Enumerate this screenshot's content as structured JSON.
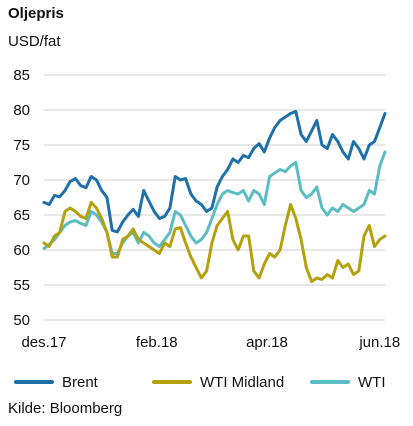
{
  "header": {
    "title": "Oljepris",
    "unit": "USD/fat"
  },
  "source": "Kilde: Bloomberg",
  "chart_data": {
    "type": "line",
    "yticks": [
      50,
      55,
      60,
      65,
      70,
      75,
      80,
      85
    ],
    "ylim": [
      50,
      85
    ],
    "xlim": [
      0,
      130
    ],
    "xticks": [
      {
        "label": "des.17",
        "x": 0
      },
      {
        "label": "feb.18",
        "x": 43
      },
      {
        "label": "apr.18",
        "x": 85
      },
      {
        "label": "jun.18",
        "x": 128
      }
    ],
    "grid": true,
    "legend": "bottom",
    "series": [
      {
        "name": "Brent",
        "color": "#1f6fa8",
        "x": [
          0,
          2,
          4,
          6,
          8,
          10,
          12,
          14,
          16,
          18,
          20,
          22,
          24,
          26,
          28,
          30,
          32,
          34,
          36,
          38,
          40,
          42,
          44,
          46,
          48,
          50,
          52,
          54,
          56,
          58,
          60,
          62,
          64,
          66,
          68,
          70,
          72,
          74,
          76,
          78,
          80,
          82,
          84,
          86,
          88,
          90,
          92,
          94,
          96,
          98,
          100,
          102,
          104,
          106,
          108,
          110,
          112,
          114,
          116,
          118,
          120,
          122,
          124,
          126,
          128,
          130
        ],
        "values": [
          66.8,
          66.5,
          67.8,
          67.6,
          68.5,
          69.8,
          70.2,
          69.2,
          68.9,
          70.5,
          70.0,
          68.5,
          67.5,
          62.8,
          62.6,
          64.0,
          65.0,
          65.8,
          64.8,
          68.5,
          67.0,
          65.5,
          64.5,
          64.8,
          66.0,
          70.5,
          70.0,
          70.2,
          68.0,
          67.0,
          66.5,
          65.5,
          66.0,
          69.0,
          70.5,
          71.5,
          73.0,
          72.5,
          73.5,
          73.2,
          74.5,
          75.2,
          74.0,
          76.0,
          77.5,
          78.5,
          79.0,
          79.5,
          79.8,
          76.5,
          75.5,
          77.0,
          78.5,
          75.0,
          74.5,
          76.5,
          75.5,
          74.0,
          73.0,
          75.5,
          74.5,
          73.0,
          75.0,
          75.5,
          77.5,
          79.5
        ]
      },
      {
        "name": "WTI Midland",
        "color": "#b5a00e",
        "x": [
          0,
          2,
          4,
          6,
          8,
          10,
          12,
          14,
          16,
          18,
          20,
          22,
          24,
          26,
          28,
          30,
          32,
          34,
          36,
          38,
          40,
          42,
          44,
          46,
          48,
          50,
          52,
          54,
          56,
          58,
          60,
          62,
          64,
          66,
          68,
          70,
          72,
          74,
          76,
          78,
          80,
          82,
          84,
          86,
          88,
          90,
          92,
          94,
          96,
          98,
          100,
          102,
          104,
          106,
          108,
          110,
          112,
          114,
          116,
          118,
          120,
          122,
          124,
          126,
          128,
          130
        ],
        "values": [
          61.0,
          60.5,
          62.0,
          62.5,
          65.5,
          66.0,
          65.5,
          64.8,
          64.5,
          66.8,
          66.0,
          64.5,
          62.5,
          59.0,
          59.0,
          61.5,
          62.0,
          63.0,
          61.5,
          61.0,
          60.5,
          60.0,
          59.5,
          61.0,
          60.5,
          63.0,
          63.2,
          61.0,
          59.0,
          57.5,
          56.0,
          57.0,
          61.0,
          63.5,
          64.5,
          65.5,
          61.5,
          60.0,
          62.0,
          62.0,
          57.0,
          56.0,
          58.0,
          59.5,
          59.0,
          60.0,
          63.5,
          66.5,
          64.5,
          61.5,
          57.5,
          55.5,
          56.0,
          55.8,
          56.5,
          56.0,
          58.5,
          57.5,
          58.0,
          56.5,
          57.0,
          62.0,
          63.5,
          60.5,
          61.5,
          62.0
        ]
      },
      {
        "name": "WTI",
        "color": "#5bbcc4",
        "x": [
          0,
          2,
          4,
          6,
          8,
          10,
          12,
          14,
          16,
          18,
          20,
          22,
          24,
          26,
          28,
          30,
          32,
          34,
          36,
          38,
          40,
          42,
          44,
          46,
          48,
          50,
          52,
          54,
          56,
          58,
          60,
          62,
          64,
          66,
          68,
          70,
          72,
          74,
          76,
          78,
          80,
          82,
          84,
          86,
          88,
          90,
          92,
          94,
          96,
          98,
          100,
          102,
          104,
          106,
          108,
          110,
          112,
          114,
          116,
          118,
          120,
          122,
          124,
          126,
          128,
          130
        ],
        "values": [
          60.2,
          60.8,
          61.5,
          62.5,
          63.5,
          64.0,
          64.2,
          63.8,
          63.5,
          65.5,
          65.0,
          64.0,
          62.5,
          59.5,
          59.5,
          61.0,
          62.0,
          62.5,
          61.0,
          62.5,
          62.0,
          61.0,
          60.5,
          61.5,
          62.5,
          65.5,
          65.0,
          63.5,
          62.0,
          61.0,
          61.5,
          62.5,
          64.5,
          66.5,
          68.0,
          68.5,
          68.2,
          68.0,
          68.5,
          67.0,
          68.5,
          68.0,
          66.5,
          70.5,
          71.0,
          71.5,
          71.2,
          72.0,
          72.5,
          68.5,
          67.5,
          68.0,
          69.0,
          66.0,
          65.0,
          66.0,
          65.5,
          66.5,
          66.0,
          65.5,
          66.0,
          66.5,
          68.5,
          68.0,
          72.0,
          74.0
        ]
      }
    ]
  }
}
